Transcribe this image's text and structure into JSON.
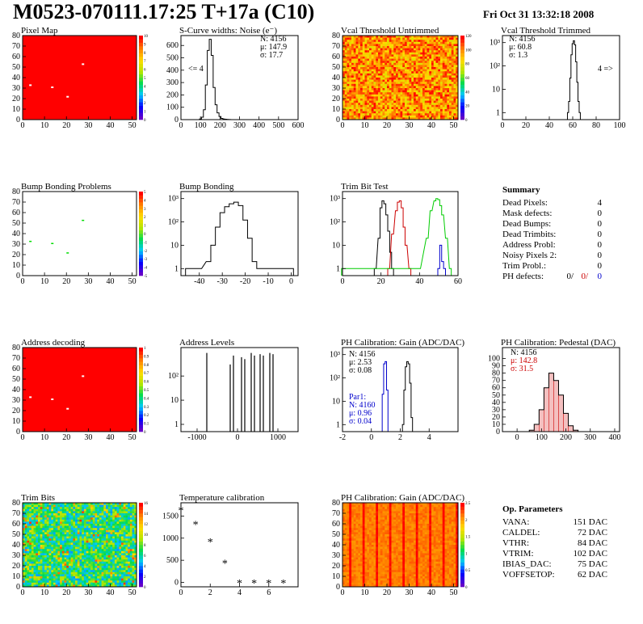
{
  "header": {
    "title": "M0523-070111.17:25 T+17a (C10)",
    "date": "Fri Oct 31 13:32:18 2008"
  },
  "panels": {
    "pixel_map": {
      "title": "Pixel Map"
    },
    "scurve": {
      "title": "S-Curve widths: Noise (e⁻)",
      "stats": [
        "N: 4156",
        "μ: 147.9",
        "σ: 17.7"
      ],
      "annotation": "<= 4"
    },
    "vcal_untrimmed": {
      "title": "Vcal Threshold Untrimmed"
    },
    "vcal_trimmed": {
      "title": "Vcal Threshold Trimmed",
      "stats": [
        "N: 4156",
        "μ: 60.8",
        "σ: 1.3"
      ],
      "annotation": "4 =>"
    },
    "bump_problems": {
      "title": "Bump Bonding Problems"
    },
    "bump_bonding": {
      "title": "Bump Bonding"
    },
    "trim_bit_test": {
      "title": "Trim Bit Test"
    },
    "address_decoding": {
      "title": "Address decoding"
    },
    "address_levels": {
      "title": "Address Levels"
    },
    "ph_gain": {
      "title": "PH Calibration: Gain (ADC/DAC)",
      "stats": [
        "N: 4156",
        "μ: 2.53",
        "σ: 0.08"
      ],
      "stats2": [
        "Par1:",
        "N: 4160",
        "μ: 0.96",
        "σ: 0.04"
      ]
    },
    "ph_pedestal": {
      "title": "PH Calibration: Pedestal (DAC)",
      "stats": [
        "N: 4156",
        "μ: 142.8",
        "σ: 31.5"
      ]
    },
    "trim_bits": {
      "title": "Trim Bits"
    },
    "temperature": {
      "title": "Temperature calibration"
    },
    "ph_gain_map": {
      "title": "PH Calibration: Gain (ADC/DAC)"
    }
  },
  "summary": {
    "title": "Summary",
    "rows": [
      {
        "label": "Dead Pixels:",
        "value": "4"
      },
      {
        "label": "Mask defects:",
        "value": "0"
      },
      {
        "label": "Dead Bumps:",
        "value": "0"
      },
      {
        "label": "Dead Trimbits:",
        "value": "0"
      },
      {
        "label": "Address Probl:",
        "value": "0"
      },
      {
        "label": "Noisy Pixels 2:",
        "value": "0"
      },
      {
        "label": "Trim Probl.:",
        "value": "0"
      }
    ],
    "ph_label": "PH defects:",
    "ph_values": [
      "0/",
      "0/",
      "0"
    ]
  },
  "op_parameters": {
    "title": "Op. Parameters",
    "rows": [
      {
        "label": "VANA:",
        "value": "151 DAC"
      },
      {
        "label": "CALDEL:",
        "value": "72 DAC"
      },
      {
        "label": "VTHR:",
        "value": "84 DAC"
      },
      {
        "label": "VTRIM:",
        "value": "102 DAC"
      },
      {
        "label": "IBIAS_DAC:",
        "value": "75 DAC"
      },
      {
        "label": "VOFFSETOP:",
        "value": "62 DAC"
      }
    ]
  },
  "colors": {
    "hist": "#000000",
    "green": "#00cc00",
    "red": "#cc0000",
    "blue": "#0000cc",
    "map_red": "#ff0000"
  },
  "chart_data": [
    {
      "id": "pixel_map",
      "type": "heatmap",
      "xlim": [
        0,
        52
      ],
      "ylim": [
        0,
        80
      ],
      "fill": "red",
      "xticks": [
        0,
        10,
        20,
        30,
        40,
        50
      ],
      "yticks": [
        0,
        10,
        20,
        30,
        40,
        50,
        60,
        70,
        80
      ],
      "zticks": [
        0,
        1,
        2,
        3,
        4,
        5,
        6,
        7,
        8,
        9,
        10
      ],
      "dead_pixels": [
        [
          27,
          52
        ],
        [
          3,
          32
        ],
        [
          13,
          30
        ],
        [
          20,
          21
        ]
      ]
    },
    {
      "id": "scurve",
      "type": "bar",
      "xlim": [
        0,
        600
      ],
      "ylim": [
        0,
        680
      ],
      "xticks": [
        0,
        100,
        200,
        300,
        400,
        500,
        600
      ],
      "yticks": [
        0,
        100,
        200,
        300,
        400,
        500,
        600
      ],
      "x": [
        100,
        110,
        120,
        130,
        140,
        150,
        160,
        170,
        180,
        190,
        200,
        210,
        220,
        230,
        240,
        250
      ],
      "values": [
        5,
        20,
        80,
        280,
        560,
        650,
        520,
        260,
        120,
        55,
        25,
        10,
        5,
        3,
        2,
        1
      ]
    },
    {
      "id": "vcal_untrimmed",
      "type": "heatmap",
      "xlim": [
        0,
        52
      ],
      "ylim": [
        0,
        80
      ],
      "xticks": [
        0,
        10,
        20,
        30,
        40,
        50
      ],
      "yticks": [
        0,
        10,
        20,
        30,
        40,
        50,
        60,
        70,
        80
      ],
      "zticks": [
        0,
        20,
        40,
        60,
        80,
        100,
        120
      ],
      "fill": "noise-orange"
    },
    {
      "id": "vcal_trimmed",
      "type": "bar",
      "log": true,
      "xlim": [
        0,
        100
      ],
      "ylim": [
        0.5,
        2000
      ],
      "xticks": [
        0,
        20,
        40,
        60,
        80,
        100
      ],
      "yticks": [
        1,
        10,
        100,
        1000
      ],
      "x": [
        56,
        57,
        58,
        59,
        60,
        61,
        62,
        63,
        64,
        65,
        66
      ],
      "values": [
        1,
        3,
        30,
        300,
        900,
        1200,
        800,
        150,
        20,
        3,
        1
      ]
    },
    {
      "id": "bump_problems",
      "type": "heatmap",
      "xlim": [
        0,
        52
      ],
      "ylim": [
        0,
        80
      ],
      "xticks": [
        0,
        10,
        20,
        30,
        40,
        50
      ],
      "yticks": [
        0,
        10,
        20,
        30,
        40,
        50,
        60,
        70,
        80
      ],
      "zticks": [
        -5,
        -4,
        -3,
        -2,
        -1,
        0,
        1,
        2,
        3,
        4,
        5
      ],
      "marks": [
        [
          27,
          52
        ],
        [
          3,
          32
        ],
        [
          13,
          30
        ],
        [
          20,
          21
        ]
      ]
    },
    {
      "id": "bump_bonding",
      "type": "bar",
      "log": true,
      "xlim": [
        -48,
        3
      ],
      "ylim": [
        0.5,
        2000
      ],
      "xticks": [
        -40,
        -30,
        -20,
        -10,
        0
      ],
      "yticks": [
        1,
        10,
        100,
        1000
      ],
      "x": [
        -45,
        -40,
        -36,
        -34,
        -32,
        -30,
        -28,
        -26,
        -24,
        -22,
        -20,
        -18,
        -16,
        -14,
        0
      ],
      "values": [
        1,
        1,
        2,
        10,
        60,
        250,
        450,
        600,
        700,
        500,
        120,
        20,
        2,
        1,
        1
      ]
    },
    {
      "id": "trim_bit_test",
      "type": "line",
      "log": true,
      "xlim": [
        0,
        60
      ],
      "ylim": [
        0.5,
        2000
      ],
      "xticks": [
        0,
        20,
        40,
        60
      ],
      "yticks": [
        1,
        10,
        100,
        1000
      ],
      "series": [
        {
          "color": "black",
          "x": [
            17,
            19,
            20,
            21,
            22,
            23,
            24,
            25,
            26
          ],
          "values": [
            1,
            20,
            400,
            800,
            600,
            200,
            40,
            5,
            1
          ]
        },
        {
          "color": "red",
          "x": [
            24,
            26,
            28,
            29,
            30,
            31,
            32,
            33,
            35
          ],
          "values": [
            1,
            30,
            300,
            700,
            800,
            400,
            60,
            10,
            1
          ]
        },
        {
          "color": "green",
          "x": [
            0,
            40,
            44,
            46,
            48,
            49,
            50,
            51,
            52,
            54,
            56
          ],
          "values": [
            1,
            1,
            20,
            300,
            800,
            1000,
            900,
            500,
            200,
            20,
            1
          ]
        },
        {
          "color": "blue",
          "x": [
            50,
            51,
            52,
            53
          ],
          "values": [
            1,
            10,
            2,
            1
          ]
        }
      ]
    },
    {
      "id": "address_decoding",
      "type": "heatmap",
      "xlim": [
        0,
        52
      ],
      "ylim": [
        0,
        80
      ],
      "fill": "red",
      "xticks": [
        0,
        10,
        20,
        30,
        40,
        50
      ],
      "yticks": [
        0,
        10,
        20,
        30,
        40,
        50,
        60,
        70,
        80
      ],
      "zticks": [
        0,
        0.1,
        0.2,
        0.3,
        0.4,
        0.5,
        0.6,
        0.7,
        0.8,
        0.9,
        1
      ],
      "dead_pixels": [
        [
          27,
          52
        ],
        [
          3,
          32
        ],
        [
          13,
          30
        ],
        [
          20,
          21
        ]
      ]
    },
    {
      "id": "address_levels",
      "type": "bar",
      "log": true,
      "xlim": [
        -1400,
        1500
      ],
      "ylim": [
        0.5,
        1500
      ],
      "xticks": [
        -1000,
        0,
        1000
      ],
      "yticks": [
        1,
        10,
        100
      ],
      "x": [
        -760,
        -180,
        -100,
        100,
        180,
        340,
        420,
        560,
        640,
        800,
        880
      ],
      "values": [
        900,
        300,
        700,
        600,
        500,
        900,
        700,
        800,
        700,
        900,
        800
      ]
    },
    {
      "id": "ph_gain",
      "type": "bar",
      "log": true,
      "xlim": [
        -2,
        6
      ],
      "ylim": [
        0.5,
        2000
      ],
      "xticks": [
        -2,
        0,
        2,
        4
      ],
      "yticks": [
        1,
        10,
        100,
        1000
      ],
      "series": [
        {
          "color": "black",
          "x": [
            2.2,
            2.3,
            2.4,
            2.5,
            2.6,
            2.7,
            2.8
          ],
          "values": [
            1,
            30,
            300,
            500,
            400,
            60,
            2
          ]
        },
        {
          "color": "blue",
          "x": [
            0.8,
            0.9,
            1.0,
            1.1
          ],
          "values": [
            20,
            400,
            500,
            30
          ]
        }
      ]
    },
    {
      "id": "ph_pedestal",
      "type": "bar",
      "xlim": [
        -60,
        420
      ],
      "ylim": [
        0,
        115
      ],
      "xticks": [
        0,
        100,
        200,
        300,
        400
      ],
      "yticks": [
        0,
        10,
        20,
        30,
        40,
        50,
        60,
        70,
        80,
        90,
        100
      ],
      "x": [
        60,
        80,
        100,
        120,
        140,
        160,
        180,
        200,
        220,
        240
      ],
      "values": [
        2,
        10,
        30,
        60,
        80,
        70,
        50,
        25,
        8,
        2
      ]
    },
    {
      "id": "trim_bits",
      "type": "heatmap",
      "xlim": [
        0,
        52
      ],
      "ylim": [
        0,
        80
      ],
      "xticks": [
        0,
        10,
        20,
        30,
        40,
        50
      ],
      "yticks": [
        0,
        10,
        20,
        30,
        40,
        50,
        60,
        70,
        80
      ],
      "zticks": [
        0,
        2,
        4,
        6,
        8,
        10,
        12,
        14,
        16
      ],
      "fill": "noise-green"
    },
    {
      "id": "temperature",
      "type": "scatter",
      "xlim": [
        0,
        8
      ],
      "ylim": [
        -100,
        1800
      ],
      "xticks": [
        0,
        2,
        4,
        6
      ],
      "yticks": [
        0,
        500,
        1000,
        1500
      ],
      "x": [
        0,
        1,
        2,
        3,
        4,
        5,
        6,
        7
      ],
      "values": [
        1640,
        1320,
        920,
        440,
        -10,
        -10,
        -10,
        -10
      ]
    },
    {
      "id": "ph_gain_map",
      "type": "heatmap",
      "xlim": [
        0,
        52
      ],
      "ylim": [
        0,
        80
      ],
      "xticks": [
        0,
        10,
        20,
        30,
        40,
        50
      ],
      "yticks": [
        0,
        10,
        20,
        30,
        40,
        50,
        60,
        70,
        80
      ],
      "zticks": [
        0,
        0.5,
        1,
        1.5,
        2,
        2.5
      ],
      "fill": "noise-red"
    }
  ]
}
